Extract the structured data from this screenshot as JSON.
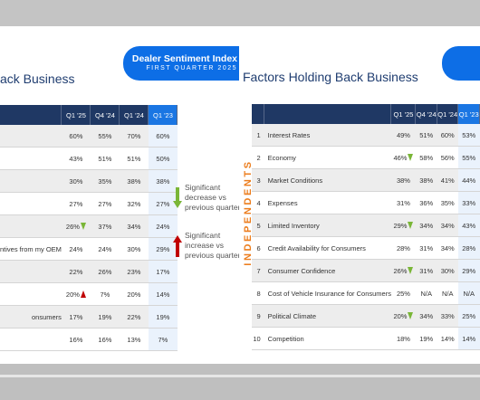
{
  "left_slide": {
    "title": "ack Business",
    "columns": [
      "",
      "Q1 '25",
      "Q4 '24",
      "Q1 '24",
      "Q1 '23"
    ],
    "rows": [
      {
        "label": "",
        "values": [
          "60%",
          "55%",
          "70%",
          "60%"
        ],
        "arrow": ""
      },
      {
        "label": "",
        "values": [
          "43%",
          "51%",
          "51%",
          "50%"
        ],
        "arrow": ""
      },
      {
        "label": "",
        "values": [
          "30%",
          "35%",
          "38%",
          "38%"
        ],
        "arrow": ""
      },
      {
        "label": "",
        "values": [
          "27%",
          "27%",
          "32%",
          "27%"
        ],
        "arrow": ""
      },
      {
        "label": "",
        "values": [
          "26%",
          "37%",
          "34%",
          "24%"
        ],
        "arrow": "down"
      },
      {
        "label": "ntives from my OEM",
        "values": [
          "24%",
          "24%",
          "30%",
          "29%"
        ],
        "arrow": ""
      },
      {
        "label": "",
        "values": [
          "22%",
          "26%",
          "23%",
          "17%"
        ],
        "arrow": ""
      },
      {
        "label": "",
        "values": [
          "20%",
          "7%",
          "20%",
          "14%"
        ],
        "arrow": "up"
      },
      {
        "label": "onsumers",
        "values": [
          "17%",
          "19%",
          "22%",
          "19%"
        ],
        "arrow": ""
      },
      {
        "label": "",
        "values": [
          "16%",
          "16%",
          "13%",
          "7%"
        ],
        "arrow": ""
      }
    ],
    "legend": {
      "decrease": "Significant decrease vs previous quarter",
      "increase": "Significant increase vs previous quarter",
      "decrease_color": "#7ab637",
      "increase_color": "#c00000"
    }
  },
  "right_slide": {
    "banner_title": "Dealer Sentiment Index",
    "banner_subtitle": "FIRST QUARTER 2025",
    "title": "Factors Holding Back Business",
    "vertical_label": "INDEPENDENTS",
    "columns": [
      "",
      "",
      "Q1 '25",
      "Q4 '24",
      "Q1 '24",
      "Q1 '23"
    ],
    "rows": [
      {
        "num": "1",
        "label": "Interest Rates",
        "values": [
          "49%",
          "51%",
          "60%",
          "53%"
        ],
        "arrow": ""
      },
      {
        "num": "2",
        "label": "Economy",
        "values": [
          "46%",
          "58%",
          "56%",
          "55%"
        ],
        "arrow": "down"
      },
      {
        "num": "3",
        "label": "Market Conditions",
        "values": [
          "38%",
          "38%",
          "41%",
          "44%"
        ],
        "arrow": ""
      },
      {
        "num": "4",
        "label": "Expenses",
        "values": [
          "31%",
          "36%",
          "35%",
          "33%"
        ],
        "arrow": ""
      },
      {
        "num": "5",
        "label": "Limited Inventory",
        "values": [
          "29%",
          "34%",
          "34%",
          "43%"
        ],
        "arrow": "down"
      },
      {
        "num": "6",
        "label": "Credit Availability for Consumers",
        "values": [
          "28%",
          "31%",
          "34%",
          "28%"
        ],
        "arrow": ""
      },
      {
        "num": "7",
        "label": "Consumer Confidence",
        "values": [
          "26%",
          "31%",
          "30%",
          "29%"
        ],
        "arrow": "down"
      },
      {
        "num": "8",
        "label": "Cost of Vehicle Insurance for Consumers",
        "values": [
          "25%",
          "N/A",
          "N/A",
          "N/A"
        ],
        "arrow": ""
      },
      {
        "num": "9",
        "label": "Political Climate",
        "values": [
          "20%",
          "34%",
          "33%",
          "25%"
        ],
        "arrow": "down"
      },
      {
        "num": "10",
        "label": "Competition",
        "values": [
          "18%",
          "19%",
          "14%",
          "14%"
        ],
        "arrow": ""
      }
    ],
    "accent_color": "#1a76e3",
    "header_color": "#1f3864",
    "vertical_label_color": "#ec7d1d"
  }
}
